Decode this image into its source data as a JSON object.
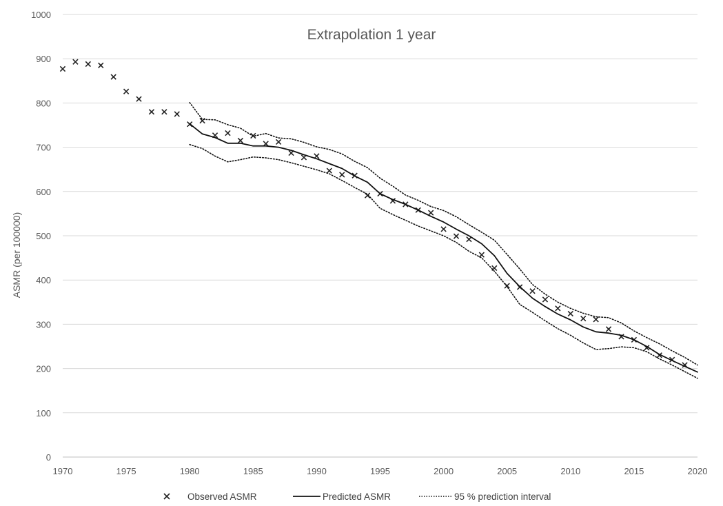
{
  "chart_data": {
    "type": "line",
    "title": "Extrapolation 1 year",
    "xlabel": "",
    "ylabel": "ASMR (per 100000)",
    "xlim": [
      1970,
      2020
    ],
    "ylim": [
      0,
      1000
    ],
    "x_ticks": [
      1970,
      1975,
      1980,
      1985,
      1990,
      1995,
      2000,
      2005,
      2010,
      2015,
      2020
    ],
    "y_ticks": [
      0,
      100,
      200,
      300,
      400,
      500,
      600,
      700,
      800,
      900,
      1000
    ],
    "grid": "horizontal",
    "legend_position": "bottom",
    "series": [
      {
        "name": "Observed ASMR",
        "style": "markers",
        "marker": "x",
        "color": "#222222",
        "x": [
          1970,
          1971,
          1972,
          1973,
          1974,
          1975,
          1976,
          1977,
          1978,
          1979,
          1980,
          1981,
          1982,
          1983,
          1984,
          1985,
          1986,
          1987,
          1988,
          1989,
          1990,
          1991,
          1992,
          1993,
          1994,
          1995,
          1996,
          1997,
          1998,
          1999,
          2000,
          2001,
          2002,
          2003,
          2004,
          2005,
          2006,
          2007,
          2008,
          2009,
          2010,
          2011,
          2012,
          2013,
          2014,
          2015,
          2016,
          2017,
          2018,
          2019
        ],
        "y": [
          877,
          893,
          888,
          885,
          859,
          826,
          809,
          780,
          780,
          775,
          752,
          760,
          727,
          732,
          715,
          726,
          708,
          712,
          687,
          677,
          680,
          647,
          638,
          636,
          591,
          595,
          579,
          571,
          558,
          552,
          515,
          499,
          492,
          457,
          427,
          387,
          384,
          375,
          356,
          336,
          324,
          313,
          311,
          289,
          272,
          265,
          247,
          230,
          220,
          208
        ]
      },
      {
        "name": "Predicted ASMR",
        "style": "solid",
        "color": "#111111",
        "x": [
          1980,
          1981,
          1982,
          1983,
          1984,
          1985,
          1986,
          1987,
          1988,
          1989,
          1990,
          1991,
          1992,
          1993,
          1994,
          1995,
          1996,
          1997,
          1998,
          1999,
          2000,
          2001,
          2002,
          2003,
          2004,
          2005,
          2006,
          2007,
          2008,
          2009,
          2010,
          2011,
          2012,
          2013,
          2014,
          2015,
          2016,
          2017,
          2018,
          2019,
          2020
        ],
        "y": [
          753,
          730,
          722,
          709,
          709,
          703,
          703,
          700,
          693,
          683,
          674,
          663,
          652,
          635,
          621,
          595,
          582,
          571,
          558,
          544,
          531,
          515,
          500,
          482,
          455,
          415,
          385,
          359,
          340,
          323,
          310,
          294,
          283,
          280,
          275,
          265,
          250,
          232,
          218,
          205,
          192
        ]
      },
      {
        "name": "95 % prediction interval",
        "style": "dotted",
        "color": "#111111",
        "band": "upper",
        "x": [
          1980,
          1981,
          1982,
          1983,
          1984,
          1985,
          1986,
          1987,
          1988,
          1989,
          1990,
          1991,
          1992,
          1993,
          1994,
          1995,
          1996,
          1997,
          1998,
          1999,
          2000,
          2001,
          2002,
          2003,
          2004,
          2005,
          2006,
          2007,
          2008,
          2009,
          2010,
          2011,
          2012,
          2013,
          2014,
          2015,
          2016,
          2017,
          2018,
          2019,
          2020
        ],
        "y": [
          801,
          763,
          762,
          751,
          743,
          725,
          731,
          721,
          719,
          711,
          701,
          695,
          685,
          668,
          654,
          630,
          612,
          592,
          580,
          566,
          557,
          543,
          525,
          508,
          490,
          458,
          425,
          390,
          368,
          350,
          336,
          325,
          317,
          315,
          303,
          285,
          270,
          256,
          240,
          225,
          208
        ]
      },
      {
        "name": "95 % prediction interval",
        "style": "dotted",
        "color": "#111111",
        "band": "lower",
        "x": [
          1980,
          1981,
          1982,
          1983,
          1984,
          1985,
          1986,
          1987,
          1988,
          1989,
          1990,
          1991,
          1992,
          1993,
          1994,
          1995,
          1996,
          1997,
          1998,
          1999,
          2000,
          2001,
          2002,
          2003,
          2004,
          2005,
          2006,
          2007,
          2008,
          2009,
          2010,
          2011,
          2012,
          2013,
          2014,
          2015,
          2016,
          2017,
          2018,
          2019,
          2020
        ],
        "y": [
          706,
          697,
          680,
          667,
          672,
          678,
          676,
          672,
          665,
          657,
          649,
          640,
          625,
          609,
          594,
          562,
          548,
          535,
          522,
          511,
          500,
          485,
          465,
          450,
          420,
          385,
          345,
          327,
          308,
          290,
          275,
          258,
          243,
          245,
          249,
          247,
          238,
          222,
          208,
          193,
          178
        ]
      }
    ],
    "legend": {
      "observed": "Observed ASMR",
      "predicted": "Predicted ASMR",
      "interval": "95 % prediction interval"
    }
  }
}
